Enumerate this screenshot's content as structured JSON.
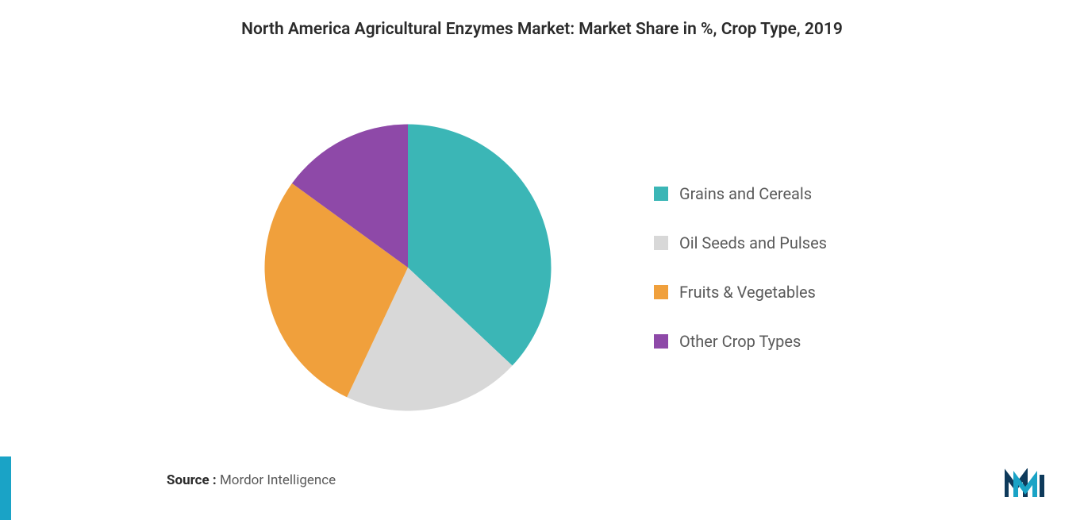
{
  "chart": {
    "type": "pie",
    "title": "North America Agricultural Enzymes Market: Market Share in %, Crop Type, 2019",
    "title_fontsize": 21,
    "title_color": "#2b2b2b",
    "background_color": "#ffffff",
    "slices": [
      {
        "name": "Grains and Cereals",
        "value": 37,
        "color": "#3bb6b6"
      },
      {
        "name": "Oil Seeds and Pulses",
        "value": 20,
        "color": "#d8d8d8"
      },
      {
        "name": "Fruits & Vegetables",
        "value": 28,
        "color": "#f0a03c"
      },
      {
        "name": "Other Crop Types",
        "value": 15,
        "color": "#8e49a8"
      }
    ],
    "start_angle_deg": 0,
    "aspect_ratio": 1,
    "legend": {
      "position": "right",
      "fontsize": 20,
      "text_color": "#5a5a5a",
      "swatch_size": 18,
      "row_gap": 38
    }
  },
  "source": {
    "label": "Source :",
    "value": "Mordor Intelligence",
    "fontsize": 17,
    "label_color": "#2b2b2b",
    "value_color": "#5a5a5a"
  },
  "brand": {
    "logo_color_1": "#0e3a5b",
    "logo_color_2": "#1aa3c6",
    "accent_bar_color": "#1aa3c6"
  }
}
